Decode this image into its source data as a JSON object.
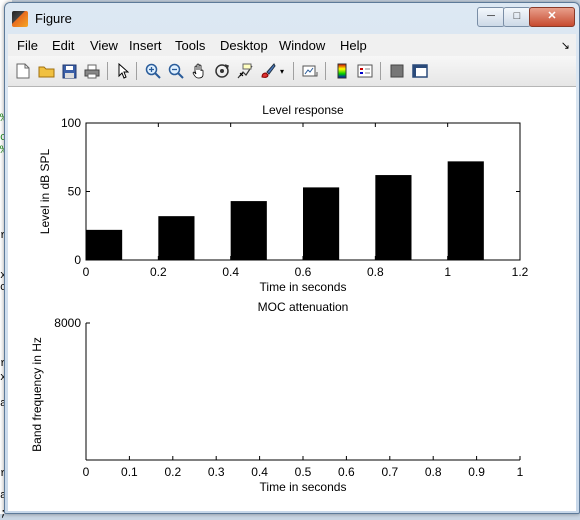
{
  "window": {
    "title": "Figure",
    "min_label": "─",
    "max_label": "□",
    "close_label": "✕"
  },
  "menu": {
    "items": [
      "File",
      "Edit",
      "View",
      "Insert",
      "Tools",
      "Desktop",
      "Window",
      "Help"
    ],
    "dock": "↘"
  },
  "toolbar": {
    "icons": [
      "new-figure-icon",
      "open-file-icon",
      "save-icon",
      "print-icon",
      "edit-plot-arrow-icon",
      "zoom-in-icon",
      "zoom-out-icon",
      "pan-hand-icon",
      "rotate-3d-icon",
      "data-cursor-icon",
      "brush-icon",
      "brush-dropdown-icon",
      "link-plot-icon",
      "colorbar-icon",
      "legend-icon",
      "hide-plot-tools-icon",
      "show-plot-tools-icon"
    ]
  },
  "background_code": [
    ";",
    "c",
    "r",
    "x",
    "c",
    "r",
    "x",
    "a",
    "r",
    "a",
    "%",
    "%"
  ],
  "chart_data": [
    {
      "type": "bar",
      "title": "Level response",
      "xlabel": "Time in seconds",
      "ylabel": "Level in dB SPL",
      "xlim": [
        0,
        1.2
      ],
      "ylim": [
        0,
        100
      ],
      "xticks": [
        "0",
        "0.2",
        "0.4",
        "0.6",
        "0.8",
        "1",
        "1.2"
      ],
      "yticks": [
        "0",
        "50",
        "100"
      ],
      "bars": [
        {
          "x_start": 0.0,
          "x_end": 0.1,
          "value": 22
        },
        {
          "x_start": 0.2,
          "x_end": 0.3,
          "value": 32
        },
        {
          "x_start": 0.4,
          "x_end": 0.5,
          "value": 43
        },
        {
          "x_start": 0.6,
          "x_end": 0.7,
          "value": 53
        },
        {
          "x_start": 0.8,
          "x_end": 0.9,
          "value": 62
        },
        {
          "x_start": 1.0,
          "x_end": 1.1,
          "value": 72
        }
      ]
    },
    {
      "type": "line",
      "title": "MOC attenuation",
      "xlabel": "Time in seconds",
      "ylabel": "Band frequency in Hz",
      "xlim": [
        0,
        1
      ],
      "xticks": [
        "0",
        "0.1",
        "0.2",
        "0.3",
        "0.4",
        "0.5",
        "0.6",
        "0.7",
        "0.8",
        "0.9",
        "1"
      ],
      "yticks": [
        "8000"
      ],
      "series": []
    }
  ]
}
